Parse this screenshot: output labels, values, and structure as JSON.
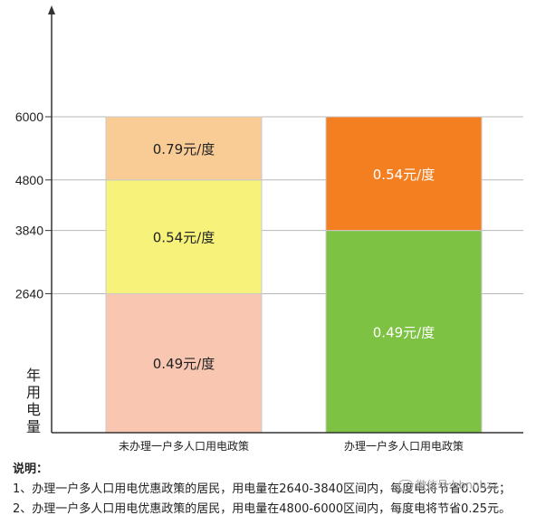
{
  "chart_data": {
    "type": "bar",
    "stacked": true,
    "ylabel": "年用电量",
    "ylim": [
      0,
      6000
    ],
    "yticks": [
      2640,
      3840,
      4800,
      6000
    ],
    "grid": true,
    "categories": [
      "未办理一户多人口用电政策",
      "办理一户多人口用电政策"
    ],
    "bars": [
      {
        "category": "未办理一户多人口用电政策",
        "segments": [
          {
            "from": 0,
            "to": 2640,
            "label": "0.49元/度",
            "color": "#f9c7b1"
          },
          {
            "from": 2640,
            "to": 4800,
            "label": "0.54元/度",
            "color": "#f6f27a"
          },
          {
            "from": 4800,
            "to": 6000,
            "label": "0.79元/度",
            "color": "#f9cc96"
          }
        ]
      },
      {
        "category": "办理一户多人口用电政策",
        "segments": [
          {
            "from": 0,
            "to": 3840,
            "label": "0.49元/度",
            "color": "#7dc242"
          },
          {
            "from": 3840,
            "to": 6000,
            "label": "0.54元/度",
            "color": "#f47f21"
          }
        ]
      }
    ]
  },
  "notes": {
    "heading": "说明：",
    "lines": [
      "1、办理一户多人口用电优惠政策的居民，用电量在2640-3840区间内，每度电将节省0.05元；",
      "2、办理一户多人口用电优惠政策的居民，用电量在4800-6000区间内，每度电将节省0.25元。"
    ]
  },
  "watermark": "微信号:hbnnhzz"
}
